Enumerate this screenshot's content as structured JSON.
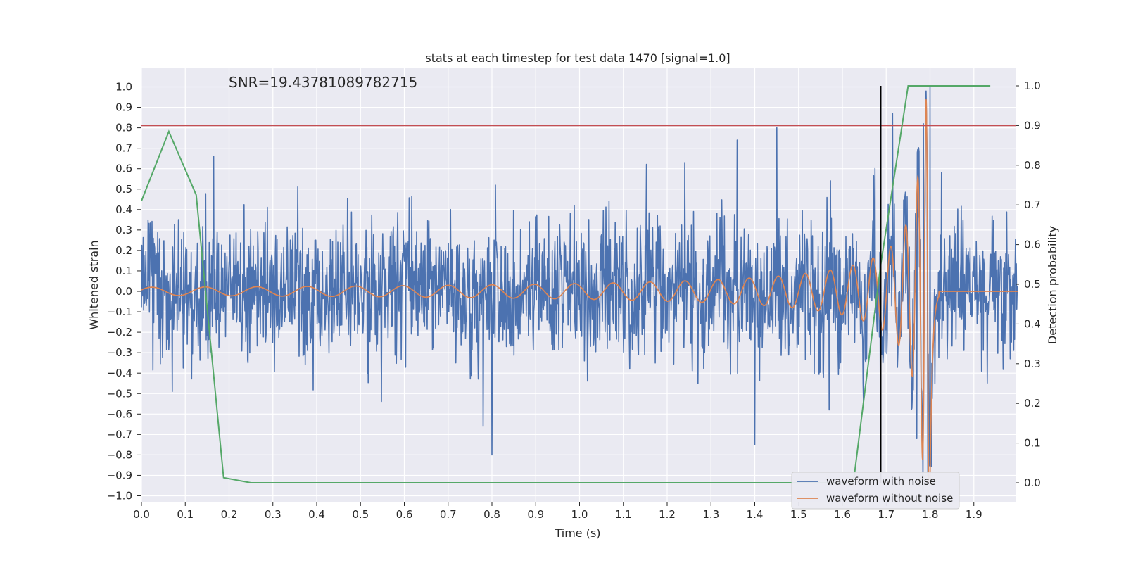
{
  "chart_data": {
    "type": "line",
    "title": "stats at each timestep for test data 1470 [signal=1.0]",
    "xlabel": "Time (s)",
    "ylabel": "Whitened strain",
    "ylabel_right": "Detection probability",
    "annotation": "SNR=19.43781089782715",
    "xlim": [
      0.0,
      2.0
    ],
    "ylim": [
      -1.05,
      1.05
    ],
    "ylim_right": [
      -0.05,
      1.05
    ],
    "x_ticks": [
      "0.0",
      "0.1",
      "0.2",
      "0.3",
      "0.4",
      "0.5",
      "0.6",
      "0.7",
      "0.8",
      "0.9",
      "1.0",
      "1.1",
      "1.2",
      "1.3",
      "1.4",
      "1.5",
      "1.6",
      "1.7",
      "1.8",
      "1.9"
    ],
    "y_ticks": [
      "1.0",
      "0.9",
      "0.8",
      "0.7",
      "0.6",
      "0.5",
      "0.4",
      "0.3",
      "0.2",
      "0.1",
      "0.0",
      "−0.1",
      "−0.2",
      "−0.3",
      "−0.4",
      "−0.5",
      "−0.6",
      "−0.7",
      "−0.8",
      "−0.9",
      "−1.0"
    ],
    "y_ticks_right": [
      "1.0",
      "0.9",
      "0.8",
      "0.7",
      "0.6",
      "0.5",
      "0.4",
      "0.3",
      "0.2",
      "0.1",
      "0.0"
    ],
    "grid": true,
    "legend_position": "bottom-right",
    "colors": {
      "noise": "#4c72b0",
      "clean": "#dd8452",
      "prob": "#55a868",
      "threshold": "#c44e52",
      "marker": "#000000",
      "background": "#eaeaf2"
    },
    "series": [
      {
        "name": "waveform with noise",
        "color": "#4c72b0",
        "axis": "left",
        "kind": "noise",
        "seed": 1470,
        "sigma": 0.17,
        "n": 1990,
        "spikes": [
          [
            0.165,
            0.66
          ],
          [
            1.45,
            0.8
          ],
          [
            1.36,
            0.74
          ],
          [
            1.4,
            -0.75
          ],
          [
            0.8,
            -0.8
          ],
          [
            1.715,
            0.87
          ],
          [
            1.785,
            0.82
          ],
          [
            1.8,
            1.0
          ],
          [
            1.795,
            -0.9
          ],
          [
            0.78,
            -0.66
          ],
          [
            1.24,
            0.63
          ],
          [
            1.57,
            -0.58
          ],
          [
            1.77,
            -0.72
          ],
          [
            0.07,
            -0.49
          ]
        ]
      },
      {
        "name": "waveform without noise",
        "color": "#dd8452",
        "axis": "left",
        "kind": "chirp",
        "t_merge": 1.8,
        "t_start": 0.0,
        "t_end": 2.0,
        "amp_peak": 0.94,
        "amp_start": 0.02
      },
      {
        "name": "",
        "color": "#55a868",
        "axis": "right",
        "kind": "steps",
        "x": [
          0.0,
          0.0625,
          0.125,
          0.1875,
          0.25,
          0.3125,
          0.375,
          0.4375,
          0.5,
          0.5625,
          0.625,
          0.6875,
          0.75,
          0.8125,
          0.875,
          0.9375,
          1.0,
          1.0625,
          1.125,
          1.1875,
          1.25,
          1.3125,
          1.375,
          1.4375,
          1.5,
          1.5625,
          1.625,
          1.6875,
          1.75,
          1.8125,
          1.875,
          1.9375
        ],
        "y": [
          0.71,
          0.885,
          0.725,
          0.013,
          0.0,
          0.0,
          0.0,
          0.0,
          0.0,
          0.0,
          0.0,
          0.0,
          0.0,
          0.0,
          0.0,
          0.0,
          0.0,
          0.0,
          0.0,
          0.0,
          0.0,
          0.0,
          0.0,
          0.0,
          0.0,
          0.0,
          0.0,
          0.55,
          1.0,
          1.0,
          1.0,
          1.0
        ]
      }
    ],
    "threshold_right": 0.9,
    "marker_x": 1.6875,
    "marker_ylim": [
      0.0,
      1.0
    ]
  }
}
